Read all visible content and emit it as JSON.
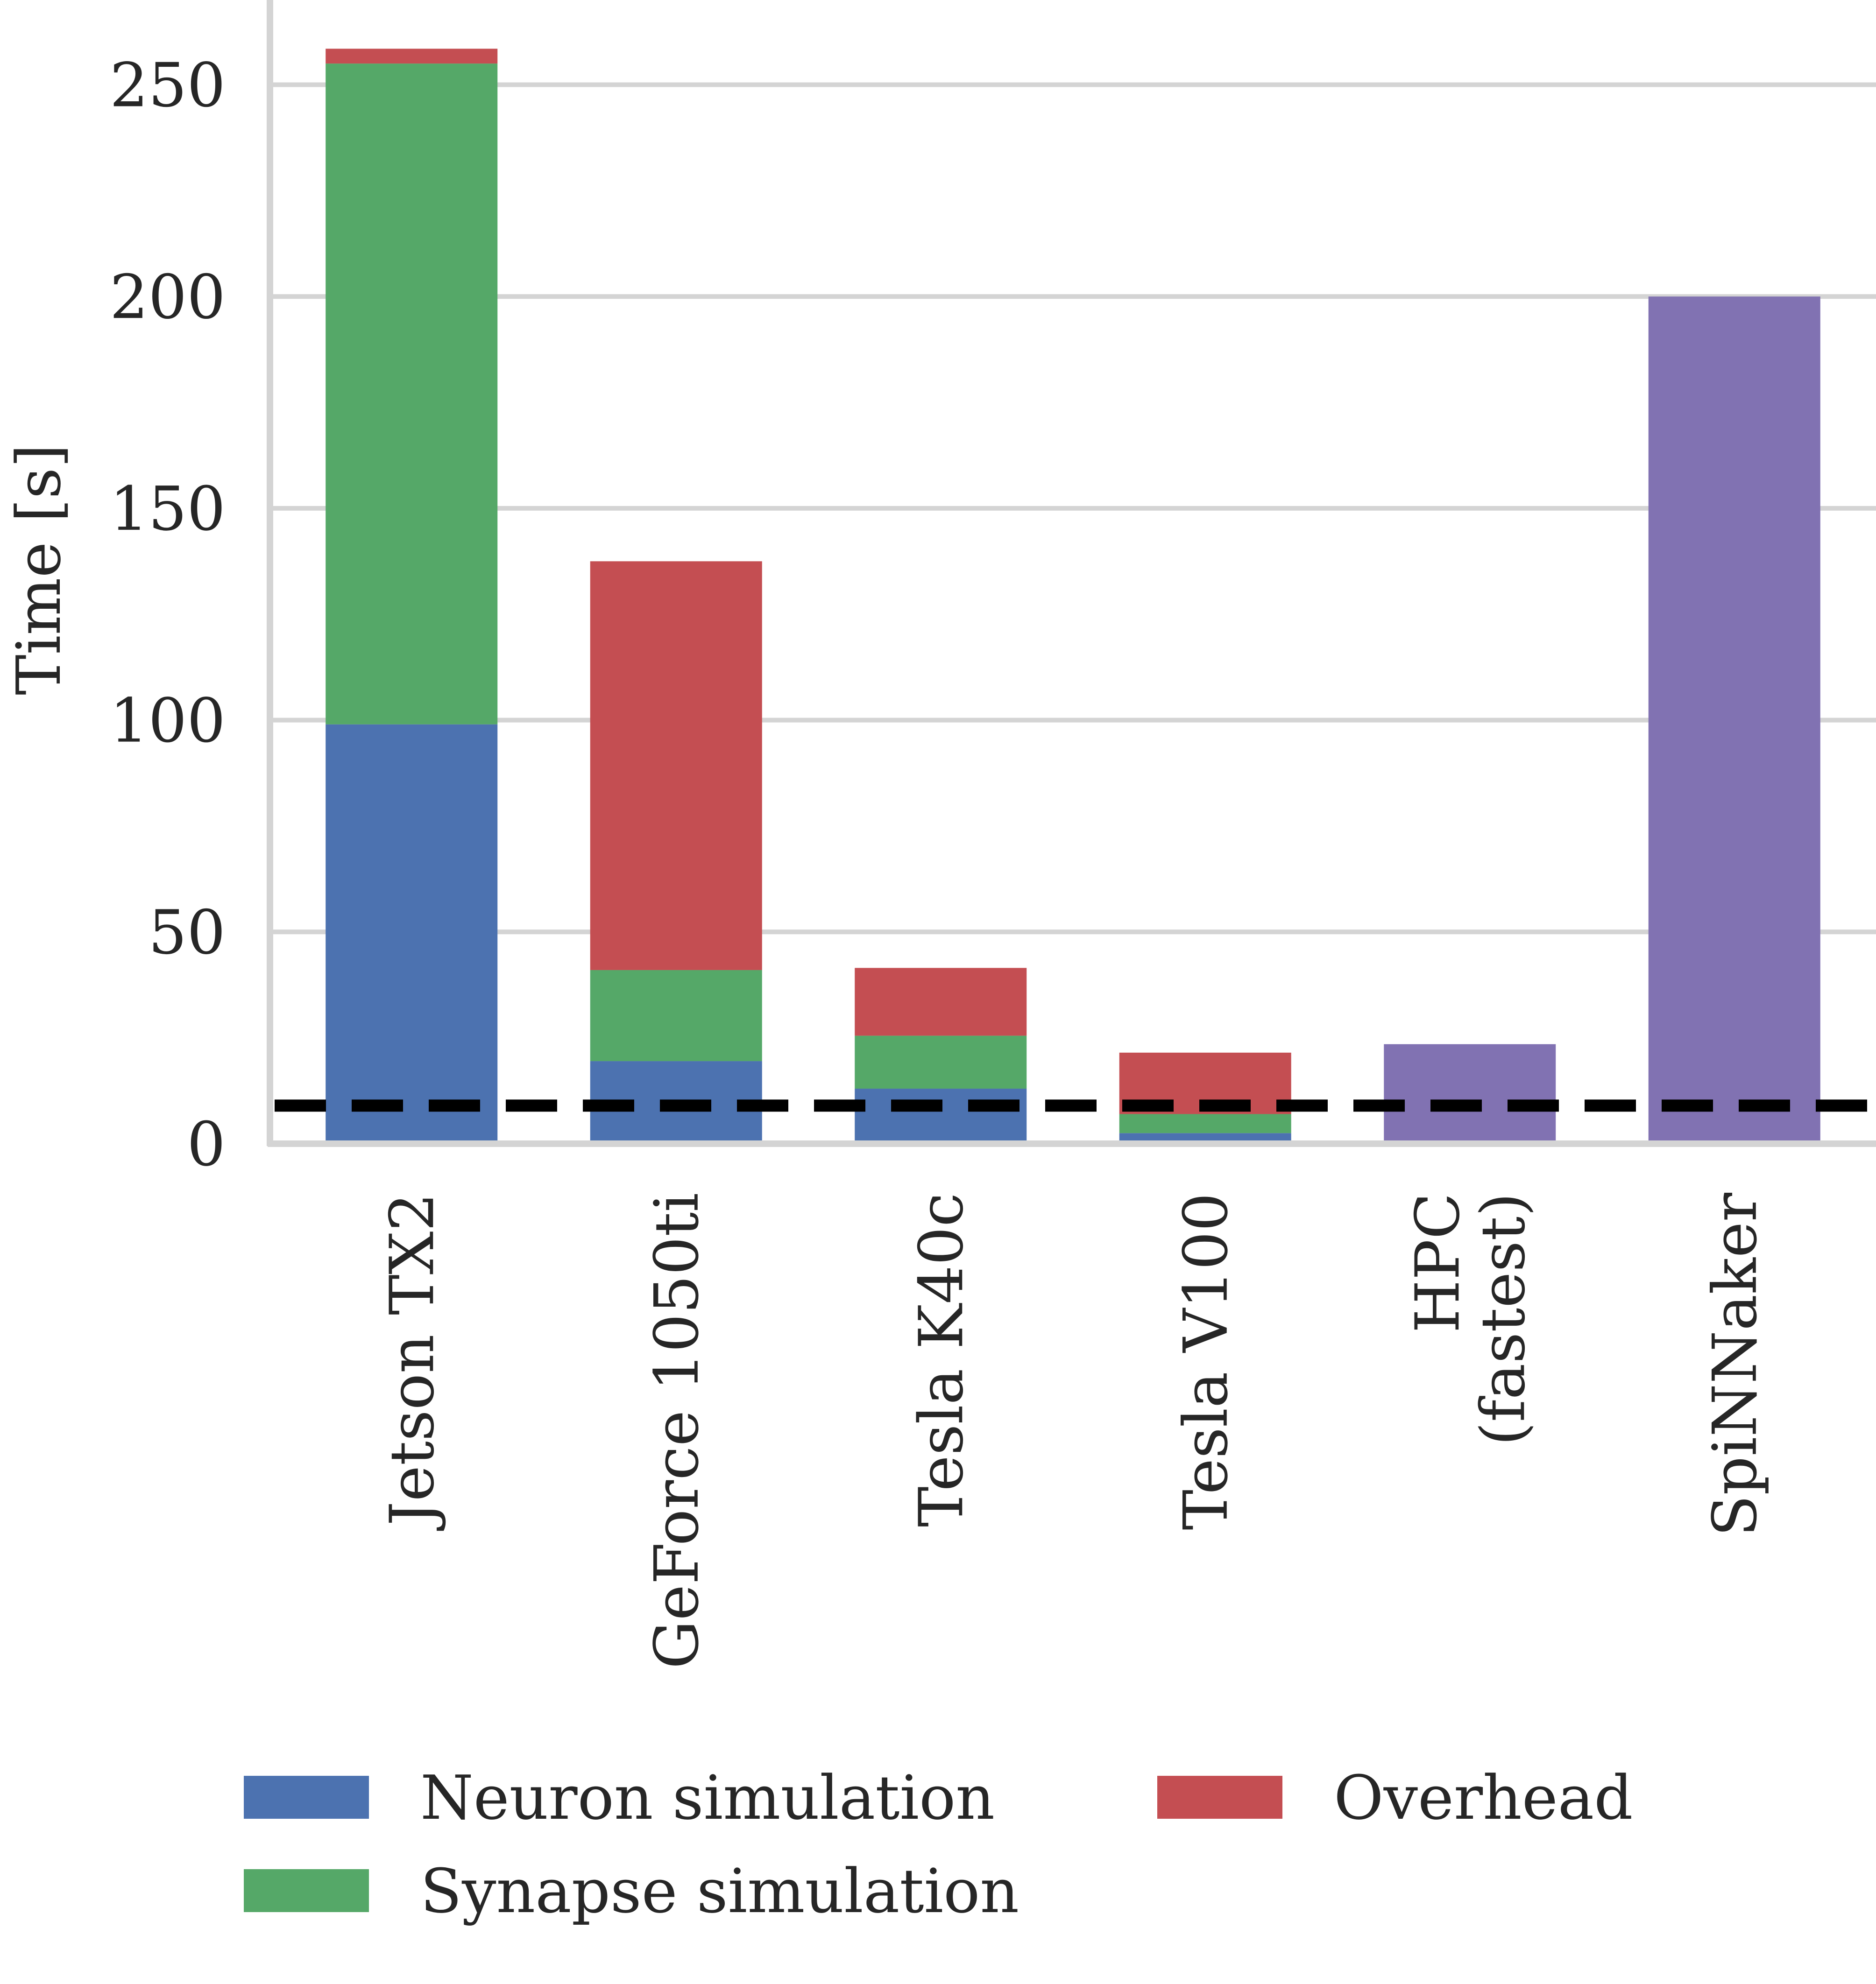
{
  "chart_data": {
    "type": "bar",
    "stacked": true,
    "ylabel": "Time [s]",
    "ylim": [
      0,
      270
    ],
    "yticks": [
      0,
      50,
      100,
      150,
      200,
      250
    ],
    "grid": "horizontal",
    "legend_position": "bottom",
    "categories": [
      [
        "Jetson TX2"
      ],
      [
        "GeForce 1050ti"
      ],
      [
        "Tesla K40c"
      ],
      [
        "Tesla V100"
      ],
      [
        "HPC",
        "(fastest)"
      ],
      [
        "SpiNNaker"
      ]
    ],
    "series": [
      {
        "name": "Neuron simulation",
        "color": "#4c72b0",
        "values": [
          99,
          19.5,
          13,
          2.5,
          0,
          0
        ]
      },
      {
        "name": "Synapse simulation",
        "color": "#55a868",
        "values": [
          156,
          21.5,
          12.5,
          4.5,
          0,
          0
        ]
      },
      {
        "name": "Overhead",
        "color": "#c44e52",
        "values": [
          3.5,
          96.5,
          16,
          14.5,
          0,
          0
        ]
      },
      {
        "color": "#8172b2",
        "values": [
          0,
          0,
          0,
          0,
          23.5,
          200
        ]
      }
    ],
    "reference_line": {
      "value": 9,
      "style": "dashed",
      "color": "#000000"
    }
  }
}
